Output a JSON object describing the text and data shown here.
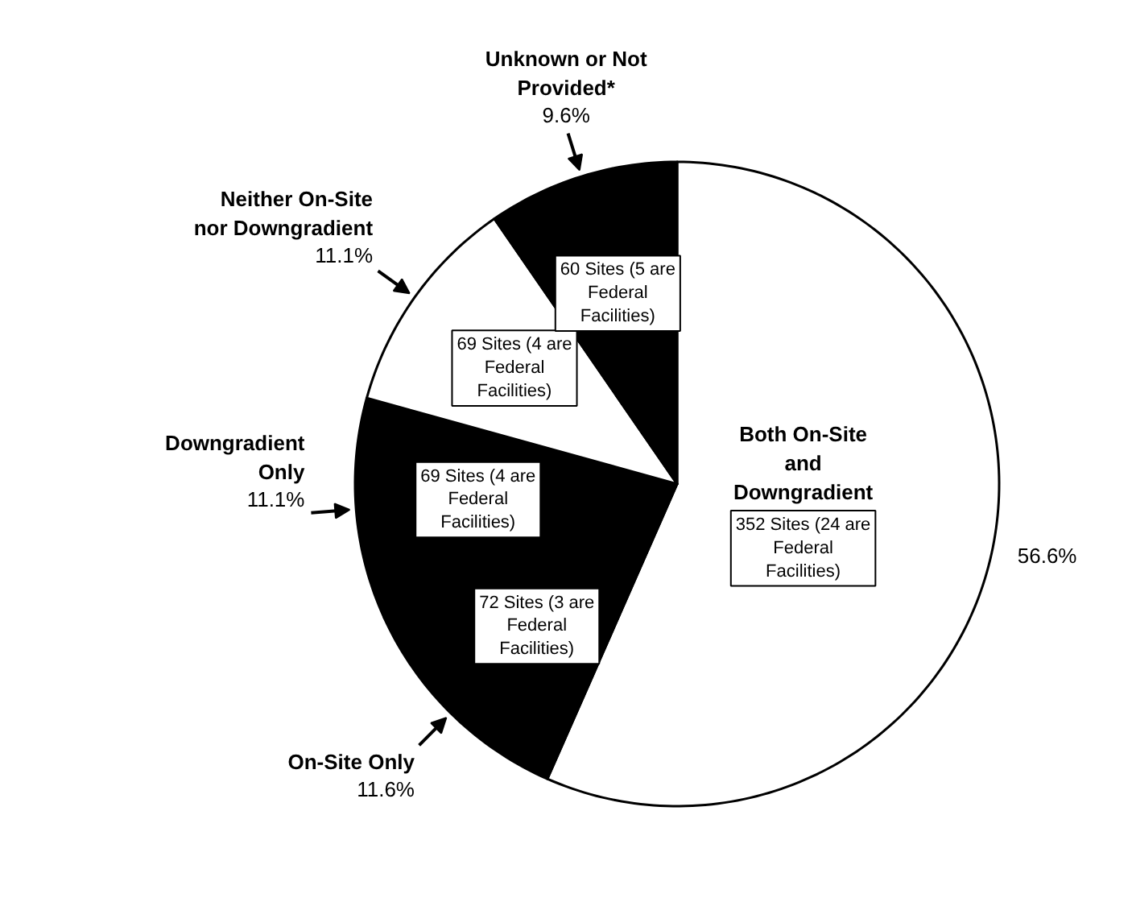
{
  "chart_data": {
    "type": "pie",
    "categories": [
      "Both On-Site and Downgradient",
      "On-Site Only",
      "Downgradient Only",
      "Neither On-Site nor Downgradient",
      "Unknown or Not Provided*"
    ],
    "values": [
      56.6,
      11.6,
      11.1,
      11.1,
      9.6
    ],
    "colors": [
      "#ffffff",
      "#000000",
      "#000000",
      "#ffffff",
      "#000000"
    ],
    "value_labels": [
      "56.6%",
      "11.6%",
      "11.1%",
      "11.1%",
      "9.6%"
    ],
    "annotations": [
      "352 Sites (24 are Federal Facilities)",
      "72 Sites (3 are Federal Facilities)",
      "69 Sites (4 are Federal Facilities)",
      "69 Sites (4 are Federal Facilities)",
      "60 Sites (5 are Federal Facilities)"
    ]
  }
}
